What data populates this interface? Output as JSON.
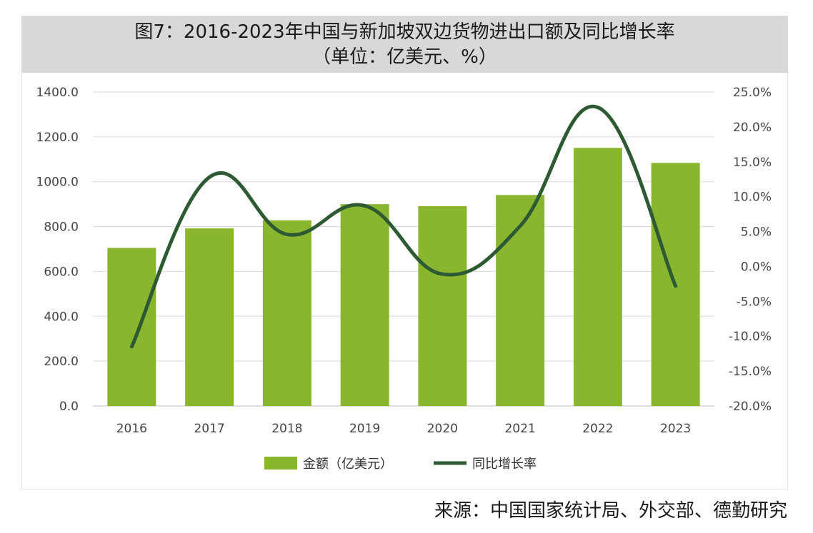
{
  "header": {
    "title_line1": "图7：2016-2023年中国与新加坡双边货物进出口额及同比增长率",
    "title_line2": "（单位：亿美元、%）"
  },
  "source_note": "来源：中国国家统计局、外交部、德勤研究",
  "colors": {
    "bar": "#8ab62f",
    "line": "#2e5a33",
    "title_bg": "#d8d8d8",
    "grid": "#d9d9d9"
  },
  "chart_data": {
    "type": "bar",
    "categories": [
      "2016",
      "2017",
      "2018",
      "2019",
      "2020",
      "2021",
      "2022",
      "2023"
    ],
    "series": [
      {
        "name": "金额（亿美元）",
        "type": "bar",
        "axis": "left",
        "values": [
          705,
          792,
          828,
          900,
          891,
          941,
          1151,
          1084
        ]
      },
      {
        "name": "同比增长率",
        "type": "line",
        "axis": "right",
        "values": [
          -11.5,
          12.8,
          4.6,
          8.7,
          -1.1,
          5.8,
          22.8,
          -2.8
        ]
      }
    ],
    "y_left": {
      "min": 0,
      "max": 1400,
      "step": 200,
      "tick_labels": [
        "0.0",
        "200.0",
        "400.0",
        "600.0",
        "800.0",
        "1000.0",
        "1200.0",
        "1400.0"
      ]
    },
    "y_right": {
      "min": -20,
      "max": 25,
      "step": 5,
      "tick_labels": [
        "-20.0%",
        "-15.0%",
        "-10.0%",
        "-5.0%",
        "0.0%",
        "5.0%",
        "10.0%",
        "15.0%",
        "20.0%",
        "25.0%"
      ]
    },
    "grid": true,
    "legend": "bottom"
  }
}
